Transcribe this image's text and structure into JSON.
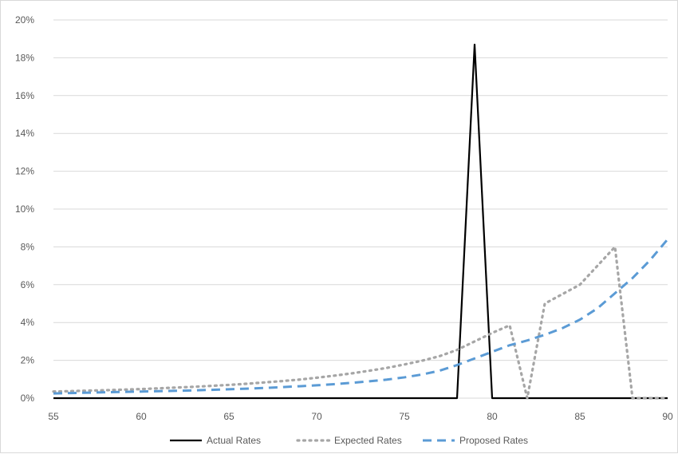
{
  "chart_data": {
    "type": "line",
    "title": "",
    "xlabel": "",
    "ylabel": "",
    "xlim": [
      55,
      90
    ],
    "ylim": [
      0,
      0.2
    ],
    "x_ticks": [
      55,
      60,
      65,
      70,
      75,
      80,
      85,
      90
    ],
    "x_tick_labels": [
      "55",
      "60",
      "65",
      "70",
      "75",
      "80",
      "85",
      "90"
    ],
    "y_ticks": [
      0,
      0.02,
      0.04,
      0.06,
      0.08,
      0.1,
      0.12,
      0.14,
      0.16,
      0.18,
      0.2
    ],
    "y_tick_labels": [
      "0%",
      "2%",
      "4%",
      "6%",
      "8%",
      "10%",
      "12%",
      "14%",
      "16%",
      "18%",
      "20%"
    ],
    "grid": "horizontal",
    "legend_position": "bottom",
    "x": [
      55,
      56,
      57,
      58,
      59,
      60,
      61,
      62,
      63,
      64,
      65,
      66,
      67,
      68,
      69,
      70,
      71,
      72,
      73,
      74,
      75,
      76,
      77,
      78,
      79,
      80,
      81,
      82,
      83,
      84,
      85,
      86,
      87,
      88,
      89,
      90
    ],
    "series": [
      {
        "name": "Actual Rates",
        "color": "#000000",
        "style": "solid",
        "values": [
          0,
          0,
          0,
          0,
          0,
          0,
          0,
          0,
          0,
          0,
          0,
          0,
          0,
          0,
          0,
          0,
          0,
          0,
          0,
          0,
          0,
          0,
          0,
          0,
          0.187,
          0,
          0,
          0,
          0,
          0,
          0,
          0,
          0,
          0,
          0,
          0
        ]
      },
      {
        "name": "Expected Rates",
        "color": "#a6a6a6",
        "style": "dotted",
        "values": [
          0.0035,
          0.0037,
          0.004,
          0.0042,
          0.0045,
          0.0048,
          0.0052,
          0.0056,
          0.006,
          0.0065,
          0.007,
          0.0076,
          0.0083,
          0.009,
          0.0098,
          0.0108,
          0.0119,
          0.0131,
          0.0145,
          0.016,
          0.0178,
          0.0198,
          0.0222,
          0.0255,
          0.03,
          0.0345,
          0.0385,
          0,
          0.05,
          0.055,
          0.06,
          0.07,
          0.08,
          0,
          0,
          0
        ]
      },
      {
        "name": "Proposed Rates",
        "color": "#5b9bd5",
        "style": "dashed",
        "values": [
          0.0025,
          0.0027,
          0.0029,
          0.0031,
          0.0033,
          0.0035,
          0.0037,
          0.0039,
          0.0041,
          0.0044,
          0.0047,
          0.005,
          0.0054,
          0.0058,
          0.0063,
          0.0068,
          0.0074,
          0.0081,
          0.0089,
          0.0098,
          0.011,
          0.0125,
          0.0145,
          0.0175,
          0.021,
          0.0245,
          0.028,
          0.0305,
          0.0335,
          0.037,
          0.0415,
          0.0475,
          0.0555,
          0.0635,
          0.073,
          0.084
        ]
      }
    ]
  }
}
